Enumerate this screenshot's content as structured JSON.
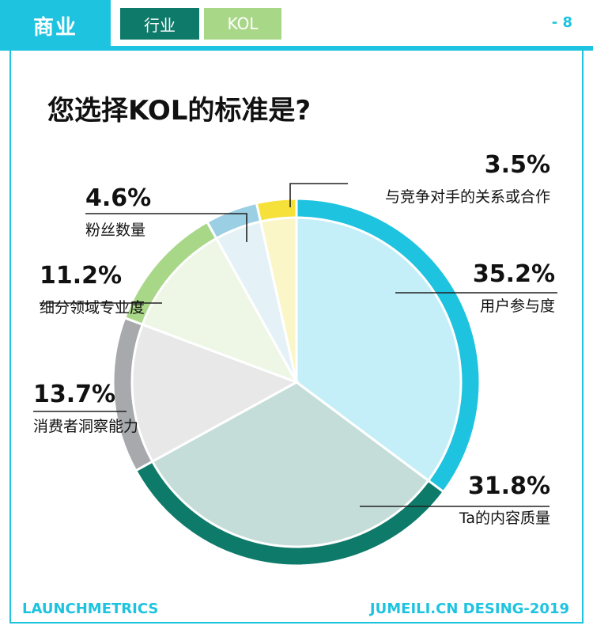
{
  "header": {
    "main_tab": "商业",
    "tabs": [
      {
        "label": "行业"
      },
      {
        "label": "KOL"
      }
    ],
    "page_number": "- 8"
  },
  "title": "您选择KOL的标准是?",
  "chart_data": {
    "type": "pie",
    "title": "您选择KOL的标准是?",
    "slices": [
      {
        "label": "用户参与度",
        "value": 35.2,
        "display": "35.2%",
        "color": "#1ec3e0",
        "fill": "#c5eff8"
      },
      {
        "label": "Ta的内容质量",
        "value": 31.8,
        "display": "31.8%",
        "color": "#0e7a6a",
        "fill": "#c4ddd9"
      },
      {
        "label": "消费者洞察能力",
        "value": 13.7,
        "display": "13.7%",
        "color": "#a7a9ac",
        "fill": "#e8e8e9"
      },
      {
        "label": "细分领域专业度",
        "value": 11.2,
        "display": "11.2%",
        "color": "#a9d788",
        "fill": "#eef6e5"
      },
      {
        "label": "粉丝数量",
        "value": 4.6,
        "display": "4.6%",
        "color": "#9bcfe3",
        "fill": "#e4f2f8"
      },
      {
        "label": "与竞争对手的关系或合作",
        "value": 3.5,
        "display": "3.5%",
        "color": "#f6e03a",
        "fill": "#fbf6c8"
      }
    ]
  },
  "footer": {
    "left": "LAUNCHMETRICS",
    "right": "JUMEILI.CN DESING-2019"
  }
}
